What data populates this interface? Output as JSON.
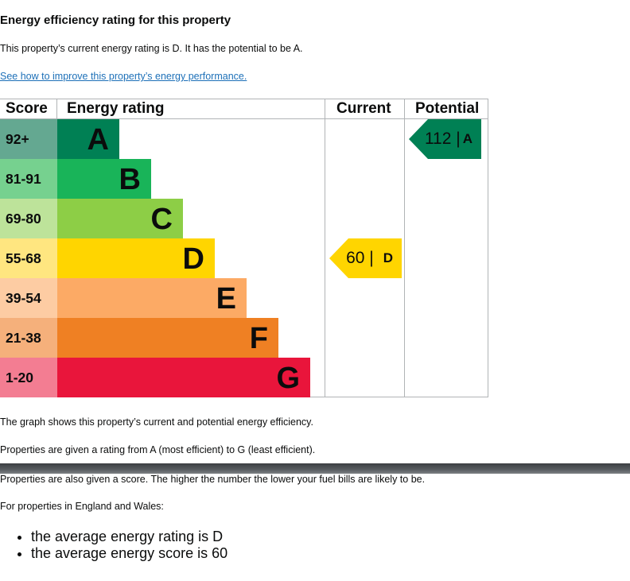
{
  "heading": "Energy efficiency rating for this property",
  "summary": "This property’s current energy rating is D. It has the potential to be A.",
  "improve_link": "See how to improve this property’s energy performance.",
  "chart_data": {
    "type": "table",
    "headers": {
      "score": "Score",
      "rating": "Energy rating",
      "current": "Current",
      "potential": "Potential"
    },
    "bands": [
      {
        "score": "92+",
        "letter": "A",
        "color": "#008054",
        "score_bg": "#64a891"
      },
      {
        "score": "81-91",
        "letter": "B",
        "color": "#19b459",
        "score_bg": "#76d18f"
      },
      {
        "score": "69-80",
        "letter": "C",
        "color": "#8dce46",
        "score_bg": "#bde39a"
      },
      {
        "score": "55-68",
        "letter": "D",
        "color": "#ffd500",
        "score_bg": "#ffe680"
      },
      {
        "score": "39-54",
        "letter": "E",
        "color": "#fcaa65",
        "score_bg": "#fdcca3"
      },
      {
        "score": "21-38",
        "letter": "F",
        "color": "#ef8023",
        "score_bg": "#f5b07b"
      },
      {
        "score": "1-20",
        "letter": "G",
        "color": "#e9153b",
        "score_bg": "#f37d92"
      }
    ],
    "current": {
      "value": 60,
      "letter": "D",
      "label": "60 |",
      "color": "#ffd500"
    },
    "potential": {
      "value": 112,
      "letter": "A",
      "label": "112 |",
      "color": "#008054"
    }
  },
  "notes": [
    "The graph shows this property’s current and potential energy efficiency.",
    "Properties are given a rating from A (most efficient) to G (least efficient).",
    "Properties are also given a score. The higher the number the lower your fuel bills are likely to be.",
    "For properties in England and Wales:"
  ],
  "averages": [
    "the average energy rating is D",
    "the average energy score is 60"
  ]
}
